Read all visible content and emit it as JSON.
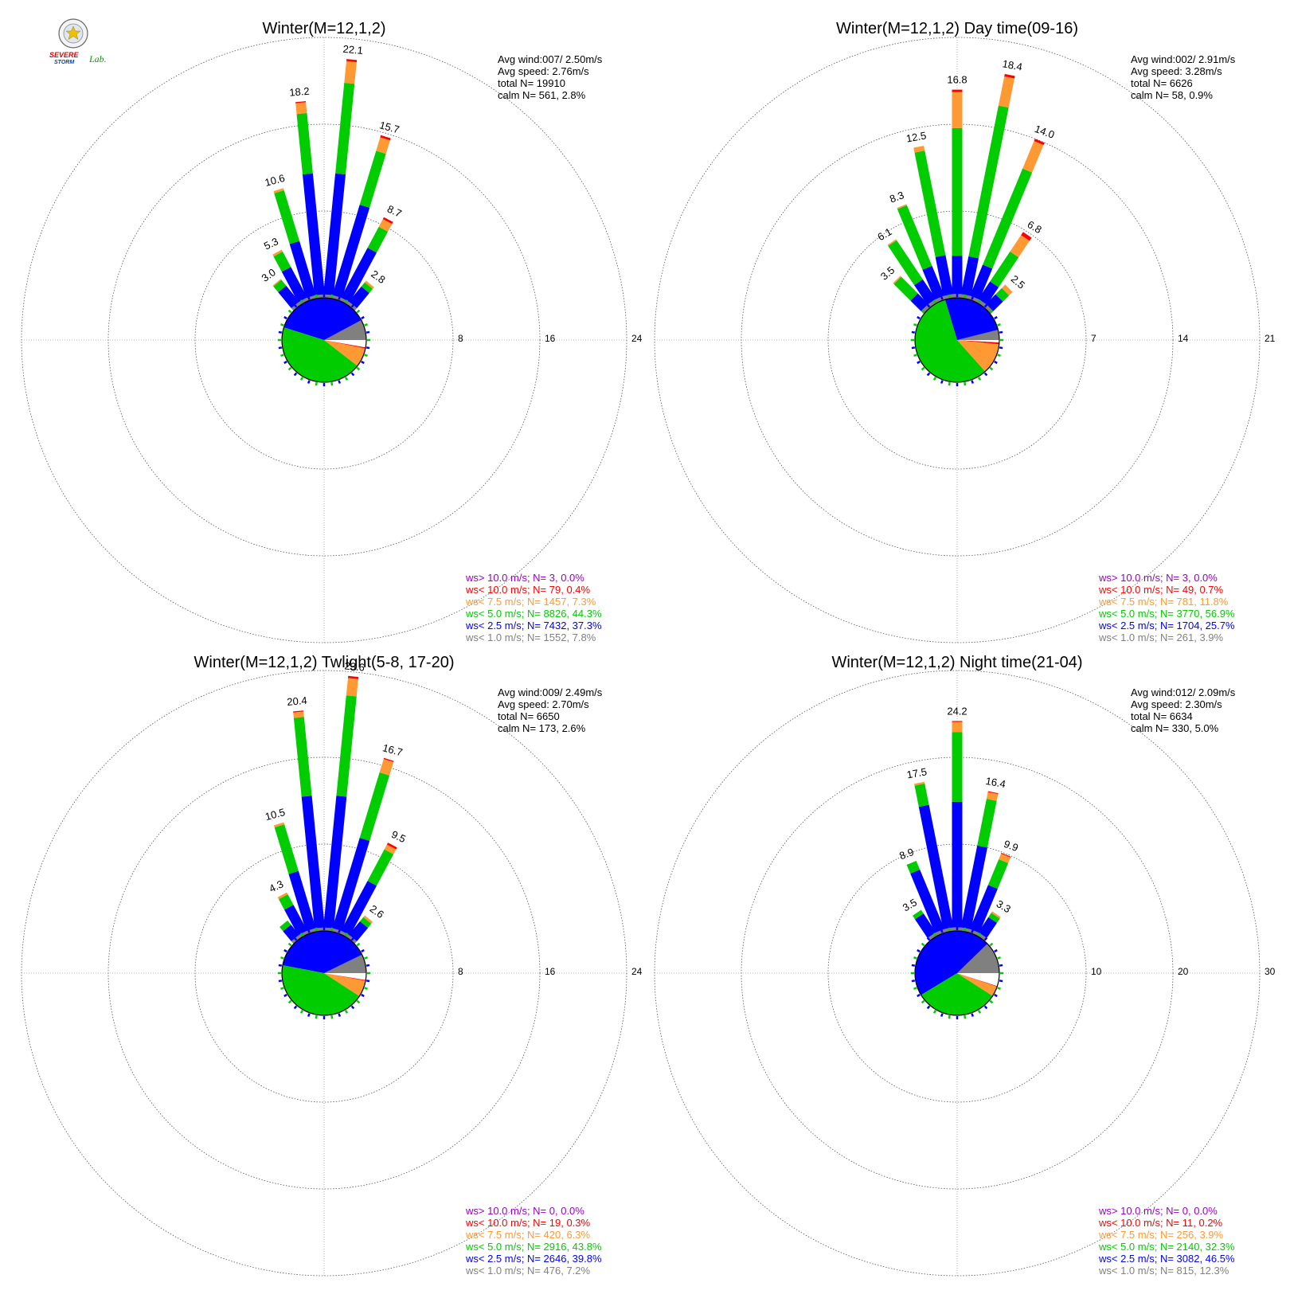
{
  "logo": {
    "text_1": "SEVERE",
    "text_2": "STORM",
    "text_3": "Lab."
  },
  "colors": {
    "gt10": "#9900cc",
    "lt10": "#ff0000",
    "lt75": "#ff9933",
    "lt5": "#00cc00",
    "lt25": "#0000ff",
    "lt1": "#808080",
    "calm": "#ffffff"
  },
  "chart_data": [
    {
      "type": "windrose",
      "title": "Winter(M=12,1,2)",
      "rings": [
        8,
        16,
        24
      ],
      "stats": [
        "Avg wind:007/ 2.50m/s",
        "Avg speed: 2.76m/s",
        "total N=       19910",
        "calm N=     561,   2.8%"
      ],
      "legend": [
        {
          "label": "ws> 10.0 m/s; N=      3,  0.0%",
          "color": "#9900cc"
        },
        {
          "label": "ws< 10.0 m/s; N=     79,  0.4%",
          "color": "#ff0000"
        },
        {
          "label": "ws<  7.5 m/s; N=  1457,  7.3%",
          "color": "#ff9933"
        },
        {
          "label": "ws<  5.0 m/s; N=  8826, 44.3%",
          "color": "#00cc00"
        },
        {
          "label": "ws<  2.5 m/s; N=  7432, 37.3%",
          "color": "#0000ff"
        },
        {
          "label": "ws<  1.0 m/s; N=  1552,  7.8%",
          "color": "#808080"
        }
      ],
      "bars": [
        {
          "label": "3.0",
          "t": [
            0.3,
            2.2,
            2.9,
            3.0,
            3.0
          ]
        },
        {
          "label": "5.3",
          "t": [
            0.3,
            3.5,
            5.1,
            5.3,
            5.3
          ]
        },
        {
          "label": "10.6",
          "t": [
            0.3,
            5.5,
            10.4,
            10.6,
            10.6
          ]
        },
        {
          "label": "18.2",
          "t": [
            0.3,
            11.5,
            17.1,
            18.1,
            18.2
          ]
        },
        {
          "label": "22.1",
          "t": [
            0.3,
            11.5,
            19.9,
            21.9,
            22.1
          ]
        },
        {
          "label": "15.7",
          "t": [
            0.3,
            9.0,
            14.2,
            15.5,
            15.7
          ]
        },
        {
          "label": "8.7",
          "t": [
            0.3,
            5.5,
            7.7,
            8.5,
            8.7
          ]
        },
        {
          "label": "2.8",
          "t": [
            0.3,
            2.1,
            2.6,
            2.8,
            2.8
          ]
        }
      ],
      "pie": [
        {
          "name": "ws< 1.0",
          "value": 7.8
        },
        {
          "name": "ws< 2.5",
          "value": 37.3
        },
        {
          "name": "ws< 5.0",
          "value": 44.3
        },
        {
          "name": "ws< 7.5",
          "value": 7.3
        },
        {
          "name": "ws< 10.0",
          "value": 0.4
        },
        {
          "name": "calm",
          "value": 2.8
        }
      ]
    },
    {
      "type": "windrose",
      "title": "Winter(M=12,1,2) Day time(09-16)",
      "rings": [
        7,
        14,
        21
      ],
      "stats": [
        "Avg wind:002/ 2.91m/s",
        "Avg speed: 3.28m/s",
        "total N=       6626",
        "calm N=      58,   0.9%"
      ],
      "legend": [
        {
          "label": "ws> 10.0 m/s; N=      3,  0.0%",
          "color": "#9900cc"
        },
        {
          "label": "ws< 10.0 m/s; N=     49,  0.7%",
          "color": "#ff0000"
        },
        {
          "label": "ws<  7.5 m/s; N=    781, 11.8%",
          "color": "#ff9933"
        },
        {
          "label": "ws<  5.0 m/s; N=  3770, 56.9%",
          "color": "#00cc00"
        },
        {
          "label": "ws<  2.5 m/s; N=  1704, 25.7%",
          "color": "#0000ff"
        },
        {
          "label": "ws<  1.0 m/s; N=    261,  3.9%",
          "color": "#808080"
        }
      ],
      "bars": [
        {
          "label": "3.5",
          "t": [
            0.3,
            1.5,
            3.4,
            3.5,
            3.5
          ]
        },
        {
          "label": "6.1",
          "t": [
            0.3,
            2.2,
            6.0,
            6.1,
            6.1
          ]
        },
        {
          "label": "8.3",
          "t": [
            0.3,
            2.9,
            8.2,
            8.3,
            8.3
          ]
        },
        {
          "label": "12.5",
          "t": [
            0.3,
            3.5,
            12.1,
            12.5,
            12.5
          ]
        },
        {
          "label": "16.8",
          "t": [
            0.3,
            3.4,
            13.7,
            16.6,
            16.8
          ]
        },
        {
          "label": "18.4",
          "t": [
            0.3,
            3.4,
            15.8,
            18.2,
            18.4
          ]
        },
        {
          "label": "14.0",
          "t": [
            0.3,
            3.0,
            11.4,
            13.8,
            14.0
          ]
        },
        {
          "label": "6.8",
          "t": [
            0.3,
            2.0,
            4.9,
            6.5,
            6.8
          ]
        },
        {
          "label": "2.5",
          "t": [
            0.3,
            1.4,
            2.1,
            2.5,
            2.5
          ]
        }
      ],
      "pie": [
        {
          "name": "ws< 1.0",
          "value": 3.9
        },
        {
          "name": "ws< 2.5",
          "value": 25.7
        },
        {
          "name": "ws< 5.0",
          "value": 56.9
        },
        {
          "name": "ws< 7.5",
          "value": 11.8
        },
        {
          "name": "ws< 10.0",
          "value": 0.7
        },
        {
          "name": "calm",
          "value": 0.9
        }
      ]
    },
    {
      "type": "windrose",
      "title": "Winter(M=12,1,2) Twlight(5-8, 17-20)",
      "rings": [
        8,
        16,
        24
      ],
      "stats": [
        "Avg wind:009/ 2.49m/s",
        "Avg speed: 2.70m/s",
        "total N=       6650",
        "calm N=     173,   2.6%"
      ],
      "legend": [
        {
          "label": "ws> 10.0 m/s; N=      0,  0.0%",
          "color": "#9900cc"
        },
        {
          "label": "ws< 10.0 m/s; N=     19,  0.3%",
          "color": "#ff0000"
        },
        {
          "label": "ws<  7.5 m/s; N=    420,  6.3%",
          "color": "#ff9933"
        },
        {
          "label": "ws<  5.0 m/s; N=  2916, 43.8%",
          "color": "#00cc00"
        },
        {
          "label": "ws<  2.5 m/s; N=  2646, 39.8%",
          "color": "#0000ff"
        },
        {
          "label": "ws<  1.0 m/s; N=    476,  7.2%",
          "color": "#808080"
        }
      ],
      "bars": [
        {
          "label": "",
          "t": [
            0.3,
            1.5,
            2.0,
            2.0,
            2.0
          ]
        },
        {
          "label": "4.3",
          "t": [
            0.3,
            3.0,
            4.1,
            4.3,
            4.3
          ]
        },
        {
          "label": "10.5",
          "t": [
            0.3,
            5.8,
            10.3,
            10.5,
            10.5
          ]
        },
        {
          "label": "20.4",
          "t": [
            0.3,
            12.5,
            19.8,
            20.3,
            20.4
          ]
        },
        {
          "label": "23.6",
          "t": [
            0.3,
            12.5,
            21.8,
            23.4,
            23.6
          ]
        },
        {
          "label": "16.7",
          "t": [
            0.3,
            9.0,
            15.3,
            16.6,
            16.7
          ]
        },
        {
          "label": "9.5",
          "t": [
            0.3,
            5.5,
            8.8,
            9.3,
            9.5
          ]
        },
        {
          "label": "2.6",
          "t": [
            0.3,
            1.9,
            2.4,
            2.6,
            2.6
          ]
        }
      ],
      "pie": [
        {
          "name": "ws< 1.0",
          "value": 7.2
        },
        {
          "name": "ws< 2.5",
          "value": 39.8
        },
        {
          "name": "ws< 5.0",
          "value": 43.8
        },
        {
          "name": "ws< 7.5",
          "value": 6.3
        },
        {
          "name": "ws< 10.0",
          "value": 0.3
        },
        {
          "name": "calm",
          "value": 2.6
        }
      ]
    },
    {
      "type": "windrose",
      "title": "Winter(M=12,1,2) Night time(21-04)",
      "rings": [
        10,
        20,
        30
      ],
      "stats": [
        "Avg wind:012/ 2.09m/s",
        "Avg speed: 2.30m/s",
        "total N=       6634",
        "calm N=     330,   5.0%"
      ],
      "legend": [
        {
          "label": "ws> 10.0 m/s; N=      0,  0.0%",
          "color": "#9900cc"
        },
        {
          "label": "ws< 10.0 m/s; N=     11,  0.2%",
          "color": "#ff0000"
        },
        {
          "label": "ws<  7.5 m/s; N=    256,  3.9%",
          "color": "#ff9933"
        },
        {
          "label": "ws<  5.0 m/s; N=  2140, 32.3%",
          "color": "#00cc00"
        },
        {
          "label": "ws<  2.5 m/s; N=  3082, 46.5%",
          "color": "#0000ff"
        },
        {
          "label": "ws<  1.0 m/s; N=    815, 12.3%",
          "color": "#808080"
        }
      ],
      "bars": [
        {
          "label": "3.5",
          "t": [
            0.4,
            3.0,
            3.5,
            3.5,
            3.5
          ]
        },
        {
          "label": "8.9",
          "t": [
            0.4,
            7.8,
            8.9,
            8.9,
            8.9
          ]
        },
        {
          "label": "17.5",
          "t": [
            0.4,
            14.8,
            17.3,
            17.5,
            17.5
          ]
        },
        {
          "label": "24.2",
          "t": [
            0.4,
            14.9,
            22.9,
            24.1,
            24.2
          ]
        },
        {
          "label": "16.4",
          "t": [
            0.4,
            10.0,
            15.5,
            16.3,
            16.4
          ]
        },
        {
          "label": "9.9",
          "t": [
            0.4,
            5.9,
            9.1,
            9.8,
            9.9
          ]
        },
        {
          "label": "3.3",
          "t": [
            0.4,
            2.5,
            3.1,
            3.3,
            3.3
          ]
        }
      ],
      "pie": [
        {
          "name": "ws< 1.0",
          "value": 12.3
        },
        {
          "name": "ws< 2.5",
          "value": 46.5
        },
        {
          "name": "ws< 5.0",
          "value": 32.3
        },
        {
          "name": "ws< 7.5",
          "value": 3.9
        },
        {
          "name": "ws< 10.0",
          "value": 0.2
        },
        {
          "name": "calm",
          "value": 5.0
        }
      ]
    }
  ]
}
